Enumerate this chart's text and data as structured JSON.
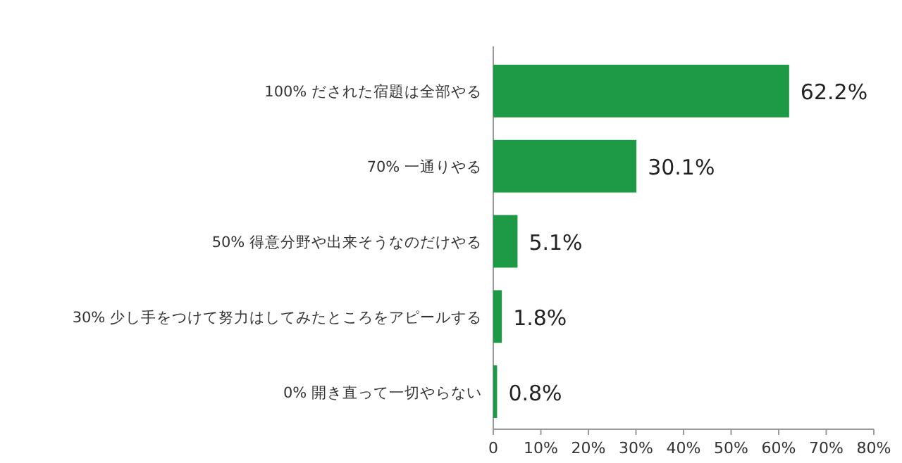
{
  "chart_data": {
    "type": "bar",
    "orientation": "horizontal",
    "categories": [
      "100% だされた宿題は全部やる",
      "70% 一通りやる",
      "50% 得意分野や出来そうなのだけやる",
      "30% 少し手をつけて努力はしてみたところをアピールする",
      "0% 開き直って一切やらない"
    ],
    "values": [
      62.2,
      30.1,
      5.1,
      1.8,
      0.8
    ],
    "color": "#1e9a46",
    "value_labels": [
      "62.2%",
      "30.1%",
      "5.1%",
      "1.8%",
      "0.8%"
    ],
    "xlim": [
      0,
      80
    ],
    "xticks": [
      0,
      {
        "value": 10,
        "label": "10%"
      },
      {
        "value": 20,
        "label": "20%"
      },
      {
        "value": 30,
        "label": "30%"
      },
      {
        "value": 40,
        "label": "40%"
      },
      {
        "value": 50,
        "label": "50%"
      },
      {
        "value": 60,
        "label": "60%"
      },
      {
        "value": 70,
        "label": "70%"
      },
      {
        "value": 80,
        "label": "80%"
      }
    ],
    "grid": false
  }
}
